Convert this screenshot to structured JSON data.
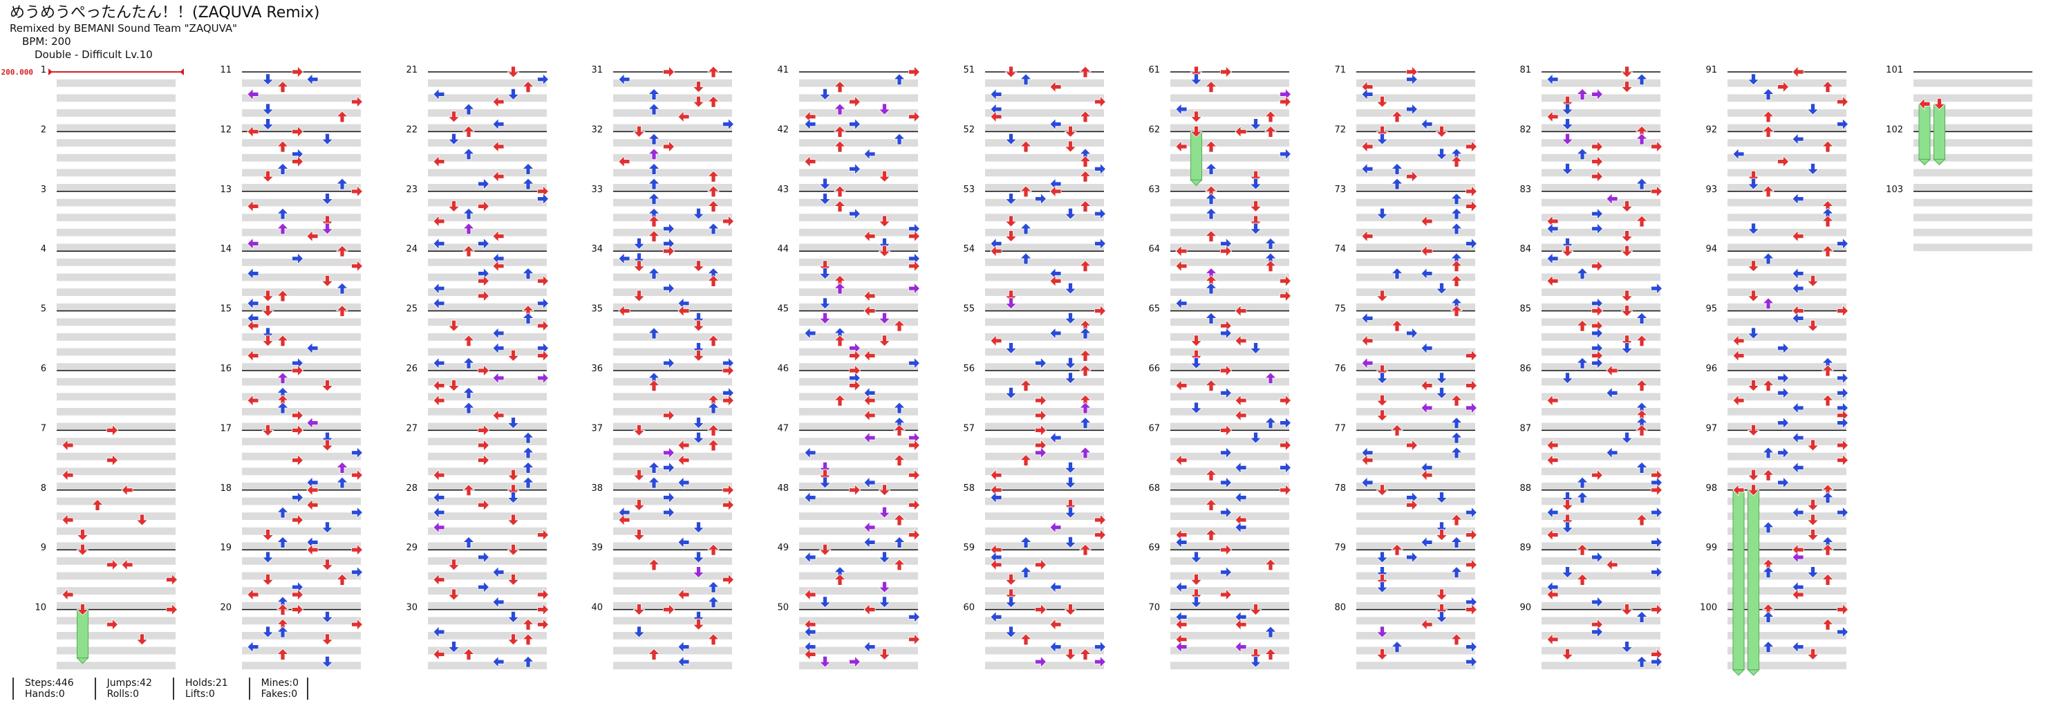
{
  "header": {
    "title": "めうめうぺったんたん！！(ZAQUVA Remix)",
    "credit": "Remixed by BEMANI Sound Team \"ZAQUVA\"",
    "bpm": "BPM: 200",
    "difficulty": "Double - Difficult  Lv.10"
  },
  "bpm_marker": {
    "label": "200.000",
    "measure": 1
  },
  "measure_labels": [
    "1",
    "2",
    "3",
    "4",
    "5",
    "6",
    "7",
    "8",
    "9",
    "10",
    "11",
    "12",
    "13",
    "14",
    "15",
    "16",
    "17",
    "18",
    "19",
    "20",
    "21",
    "22",
    "23",
    "24",
    "25",
    "26",
    "27",
    "28",
    "29",
    "30",
    "31",
    "32",
    "33",
    "34",
    "35",
    "36",
    "37",
    "38",
    "39",
    "40",
    "41",
    "42",
    "43",
    "44",
    "45",
    "46",
    "47",
    "48",
    "49",
    "50",
    "51",
    "52",
    "53",
    "54",
    "55",
    "56",
    "57",
    "58",
    "59",
    "60",
    "61",
    "62",
    "63",
    "64",
    "65",
    "66",
    "67",
    "68",
    "69",
    "70",
    "71",
    "72",
    "73",
    "74",
    "75",
    "76",
    "77",
    "78",
    "79",
    "80",
    "81",
    "82",
    "83",
    "84",
    "85",
    "86",
    "87",
    "88",
    "89",
    "90",
    "91",
    "92",
    "93",
    "94",
    "95",
    "96",
    "97",
    "98",
    "99",
    "100",
    "101",
    "102",
    "103"
  ],
  "colors": {
    "quarter": "#e03030",
    "eighth": "#2a4ad8",
    "sixteenth": "#9a2ad8",
    "mine": "#e8d030",
    "hold": "#8ee08e"
  },
  "stats": {
    "steps": "Steps:446",
    "hands": "Hands:0",
    "jumps": "Jumps:42",
    "rolls": "Rolls:0",
    "holds": "Holds:21",
    "lifts": "Lifts:0",
    "mines": "Mines:0",
    "fakes": "Fakes:0"
  }
}
